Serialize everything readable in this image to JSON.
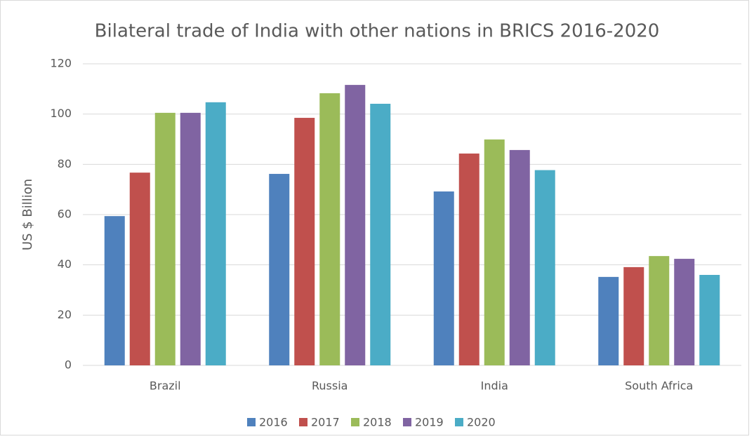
{
  "chart_data": {
    "type": "bar",
    "title": "Bilateral trade of India with other nations in BRICS 2016-2020",
    "y_label": "US $ Billion",
    "categories": [
      "Brazil",
      "Russia",
      "India",
      "South Africa"
    ],
    "series": [
      {
        "name": "2016",
        "color": "#4f81bd",
        "values": [
          59.4,
          76.2,
          69.2,
          35.2
        ]
      },
      {
        "name": "2017",
        "color": "#c0504d",
        "values": [
          76.7,
          98.5,
          84.3,
          39.1
        ]
      },
      {
        "name": "2018",
        "color": "#9bbb59",
        "values": [
          100.5,
          108.3,
          89.9,
          43.5
        ]
      },
      {
        "name": "2019",
        "color": "#8064a2",
        "values": [
          100.5,
          111.6,
          85.7,
          42.4
        ]
      },
      {
        "name": "2020",
        "color": "#4bacc6",
        "values": [
          104.7,
          104.1,
          77.7,
          36.0
        ]
      }
    ],
    "ylim": [
      0,
      120
    ],
    "yticks": [
      0,
      20,
      40,
      60,
      80,
      100,
      120
    ],
    "grid": true,
    "legend": "bottom"
  }
}
